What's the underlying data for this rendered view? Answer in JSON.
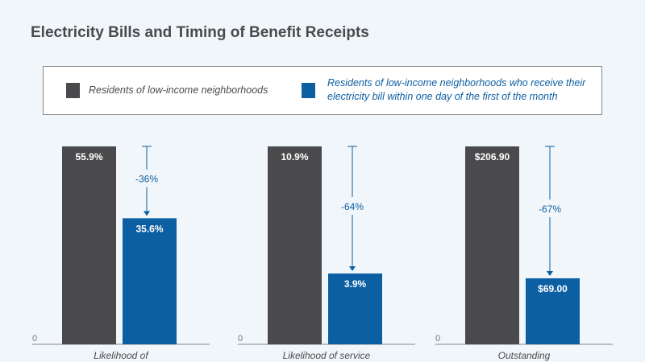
{
  "title": "Electricity Bills and Timing of Benefit Receipts",
  "legend": [
    {
      "label": "Residents of low-income neighborhoods",
      "color": "#4a4a4d"
    },
    {
      "label": "Residents of low-income neighborhoods who receive their electricity bill within one day of the first of the month",
      "color": "#0d5fa3"
    }
  ],
  "chart_data": [
    {
      "type": "bar",
      "categories": [
        "Likelihood of"
      ],
      "series": [
        {
          "name": "Residents of low-income neighborhoods",
          "values": [
            55.9
          ],
          "label": "55.9%"
        },
        {
          "name": "Residents of low-income neighborhoods who receive their electricity bill within one day of the first of the month",
          "values": [
            35.6
          ],
          "label": "35.6%"
        }
      ],
      "change": "-36%",
      "yaxis_tick": "0"
    },
    {
      "type": "bar",
      "categories": [
        "Likelihood of service"
      ],
      "series": [
        {
          "name": "Residents of low-income neighborhoods",
          "values": [
            10.9
          ],
          "label": "10.9%"
        },
        {
          "name": "Residents of low-income neighborhoods who receive their electricity bill within one day of the first of the month",
          "values": [
            3.9
          ],
          "label": "3.9%"
        }
      ],
      "change": "-64%",
      "yaxis_tick": "0"
    },
    {
      "type": "bar",
      "categories": [
        "Outstanding"
      ],
      "series": [
        {
          "name": "Residents of low-income neighborhoods",
          "values": [
            206.9
          ],
          "label": "$206.90"
        },
        {
          "name": "Residents of low-income neighborhoods who receive their electricity bill within one day of the first of the month",
          "values": [
            69.0
          ],
          "label": "$69.00"
        }
      ],
      "change": "-67%",
      "yaxis_tick": "0"
    }
  ]
}
